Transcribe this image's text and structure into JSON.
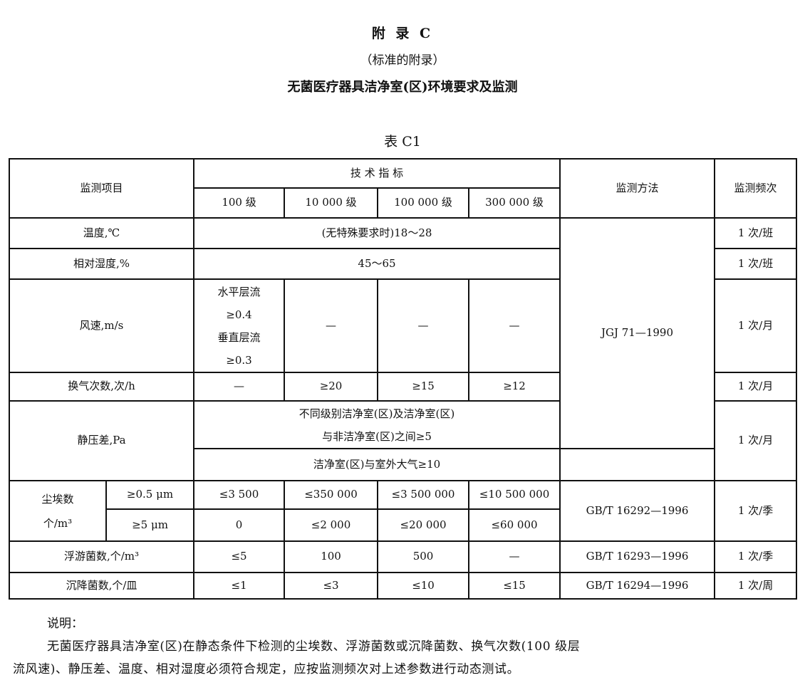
{
  "title": "附 录 C",
  "subtitle": "（标准的附录）",
  "heading": "无菌医疗器具洁净室(区)环境要求及监测",
  "table_caption": "表 C1",
  "table": {
    "header": {
      "item": "监测项目",
      "tech": "技 术 指 标",
      "method": "监测方法",
      "freq": "监测频次",
      "grades": [
        "100 级",
        "10 000 级",
        "100 000 级",
        "300 000 级"
      ]
    },
    "rows": {
      "temp": {
        "label": "温度,℃",
        "value": "(无特殊要求时)18～28",
        "freq": "1 次/班"
      },
      "humidity": {
        "label": "相对湿度,%",
        "value": "45～65",
        "freq": "1 次/班"
      },
      "wind": {
        "label": "风速,m/s",
        "v1a": "水平层流",
        "v1b": "≥0.4",
        "v1c": "垂直层流",
        "v1d": "≥0.3",
        "v2": "—",
        "v3": "—",
        "v4": "—",
        "freq": "1 次/月"
      },
      "air_change": {
        "label": "换气次数,次/h",
        "values": [
          "—",
          "≥20",
          "≥15",
          "≥12"
        ],
        "freq": "1 次/月"
      },
      "pressure": {
        "label": "静压差,Pa",
        "line1": "不同级别洁净室(区)及洁净室(区)",
        "line2": "与非洁净室(区)之间≥5",
        "line3": "洁净室(区)与室外大气≥10",
        "freq": "1 次/月"
      },
      "method_shared": "JGJ 71—1990",
      "dust": {
        "label1": "尘埃数",
        "label2": "个/m³",
        "sub1": "≥0.5 μm",
        "values1": [
          "≤3 500",
          "≤350 000",
          "≤3 500 000",
          "≤10 500 000"
        ],
        "sub2": "≥5 μm",
        "values2": [
          "0",
          "≤2 000",
          "≤20 000",
          "≤60 000"
        ],
        "method": "GB/T 16292—1996",
        "freq": "1 次/季"
      },
      "plankton": {
        "label": "浮游菌数,个/m³",
        "values": [
          "≤5",
          "100",
          "500",
          "—"
        ],
        "method": "GB/T 16293—1996",
        "freq": "1 次/季"
      },
      "settle": {
        "label": "沉降菌数,个/皿",
        "values": [
          "≤1",
          "≤3",
          "≤10",
          "≤15"
        ],
        "method": "GB/T 16294—1996",
        "freq": "1 次/周"
      }
    }
  },
  "notes": {
    "label": "说明：",
    "line1": "无菌医疗器具洁净室(区)在静态条件下检测的尘埃数、浮游菌数或沉降菌数、换气次数(100 级层",
    "line2": "流风速)、静压差、温度、相对湿度必须符合规定，应按监测频次对上述参数进行动态测试。"
  }
}
